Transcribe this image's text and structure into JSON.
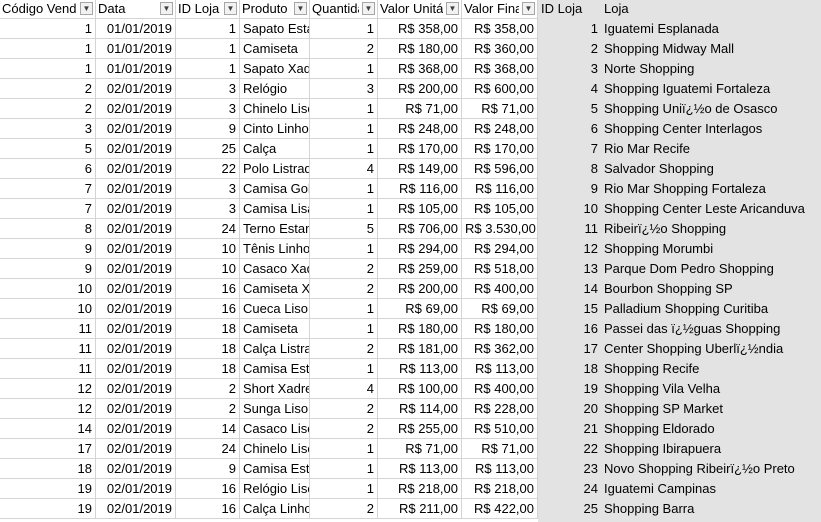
{
  "headers": [
    {
      "label": "Código Vendedor",
      "filter_icon": "dropdown-arrow-icon"
    },
    {
      "label": "Data",
      "filter_icon": "dropdown-arrow-icon"
    },
    {
      "label": "ID Loja",
      "filter_icon": "dropdown-arrow-icon"
    },
    {
      "label": "Produto",
      "filter_icon": "dropdown-arrow-icon"
    },
    {
      "label": "Quantidade",
      "filter_icon": "dropdown-arrow-icon"
    },
    {
      "label": "Valor Unitário",
      "filter_icon": "dropdown-arrow-icon"
    },
    {
      "label": "Valor Final",
      "filter_icon": "dropdown-arrow-icon"
    }
  ],
  "lojas_headers": {
    "id": "ID Loja",
    "name": "Loja"
  },
  "sales_rows": [
    [
      "1",
      "01/01/2019",
      "1",
      "Sapato Estampa",
      "1",
      "R$ 358,00",
      "R$ 358,00"
    ],
    [
      "1",
      "01/01/2019",
      "1",
      "Camiseta",
      "2",
      "R$ 180,00",
      "R$ 360,00"
    ],
    [
      "1",
      "01/01/2019",
      "1",
      "Sapato Xadrez",
      "1",
      "R$ 368,00",
      "R$ 368,00"
    ],
    [
      "2",
      "02/01/2019",
      "3",
      "Relógio",
      "3",
      "R$ 200,00",
      "R$ 600,00"
    ],
    [
      "2",
      "02/01/2019",
      "3",
      "Chinelo Liso",
      "1",
      "R$ 71,00",
      "R$ 71,00"
    ],
    [
      "3",
      "02/01/2019",
      "9",
      "Cinto Linho",
      "1",
      "R$ 248,00",
      "R$ 248,00"
    ],
    [
      "5",
      "02/01/2019",
      "25",
      "Calça",
      "1",
      "R$ 170,00",
      "R$ 170,00"
    ],
    [
      "6",
      "02/01/2019",
      "22",
      "Polo Listrada",
      "4",
      "R$ 149,00",
      "R$ 596,00"
    ],
    [
      "7",
      "02/01/2019",
      "3",
      "Camisa Gola",
      "1",
      "R$ 116,00",
      "R$ 116,00"
    ],
    [
      "7",
      "02/01/2019",
      "3",
      "Camisa Lisa",
      "1",
      "R$ 105,00",
      "R$ 105,00"
    ],
    [
      "8",
      "02/01/2019",
      "24",
      "Terno Estampa",
      "5",
      "R$ 706,00",
      "R$ 3.530,00"
    ],
    [
      "9",
      "02/01/2019",
      "10",
      "Tênis Linho",
      "1",
      "R$ 294,00",
      "R$ 294,00"
    ],
    [
      "9",
      "02/01/2019",
      "10",
      "Casaco Xadrez",
      "2",
      "R$ 259,00",
      "R$ 518,00"
    ],
    [
      "10",
      "02/01/2019",
      "16",
      "Camiseta Xadrez",
      "2",
      "R$ 200,00",
      "R$ 400,00"
    ],
    [
      "10",
      "02/01/2019",
      "16",
      "Cueca Liso",
      "1",
      "R$ 69,00",
      "R$ 69,00"
    ],
    [
      "11",
      "02/01/2019",
      "18",
      "Camiseta",
      "1",
      "R$ 180,00",
      "R$ 180,00"
    ],
    [
      "11",
      "02/01/2019",
      "18",
      "Calça Listrada",
      "2",
      "R$ 181,00",
      "R$ 362,00"
    ],
    [
      "11",
      "02/01/2019",
      "18",
      "Camisa Estampa",
      "1",
      "R$ 113,00",
      "R$ 113,00"
    ],
    [
      "12",
      "02/01/2019",
      "2",
      "Short Xadrez",
      "4",
      "R$ 100,00",
      "R$ 400,00"
    ],
    [
      "12",
      "02/01/2019",
      "2",
      "Sunga Liso",
      "2",
      "R$ 114,00",
      "R$ 228,00"
    ],
    [
      "14",
      "02/01/2019",
      "14",
      "Casaco Liso",
      "2",
      "R$ 255,00",
      "R$ 510,00"
    ],
    [
      "17",
      "02/01/2019",
      "24",
      "Chinelo Liso",
      "1",
      "R$ 71,00",
      "R$ 71,00"
    ],
    [
      "18",
      "02/01/2019",
      "9",
      "Camisa Estampa",
      "1",
      "R$ 113,00",
      "R$ 113,00"
    ],
    [
      "19",
      "02/01/2019",
      "16",
      "Relógio Liso",
      "1",
      "R$ 218,00",
      "R$ 218,00"
    ],
    [
      "19",
      "02/01/2019",
      "16",
      "Calça Linho",
      "2",
      "R$ 211,00",
      "R$ 422,00"
    ]
  ],
  "lojas": [
    [
      "1",
      "Iguatemi Esplanada"
    ],
    [
      "2",
      "Shopping Midway Mall"
    ],
    [
      "3",
      "Norte Shopping"
    ],
    [
      "4",
      "Shopping Iguatemi Fortaleza"
    ],
    [
      "5",
      "Shopping Uniï¿½o de Osasco"
    ],
    [
      "6",
      "Shopping Center Interlagos"
    ],
    [
      "7",
      "Rio Mar Recife"
    ],
    [
      "8",
      "Salvador Shopping"
    ],
    [
      "9",
      "Rio Mar Shopping Fortaleza"
    ],
    [
      "10",
      "Shopping Center Leste Aricanduva"
    ],
    [
      "11",
      "Ribeirï¿½o Shopping"
    ],
    [
      "12",
      "Shopping Morumbi"
    ],
    [
      "13",
      "Parque Dom Pedro Shopping"
    ],
    [
      "14",
      "Bourbon Shopping SP"
    ],
    [
      "15",
      "Palladium Shopping Curitiba"
    ],
    [
      "16",
      "Passei das ï¿½guas Shopping"
    ],
    [
      "17",
      "Center Shopping Uberlï¿½ndia"
    ],
    [
      "18",
      "Shopping Recife"
    ],
    [
      "19",
      "Shopping Vila Velha"
    ],
    [
      "20",
      "Shopping SP Market"
    ],
    [
      "21",
      "Shopping Eldorado"
    ],
    [
      "22",
      "Shopping Ibirapuera"
    ],
    [
      "23",
      "Novo Shopping Ribeirï¿½o Preto"
    ],
    [
      "24",
      "Iguatemi Campinas"
    ],
    [
      "25",
      "Shopping Barra"
    ]
  ],
  "colors": {
    "grid": "#d4d4d4",
    "lookup_shade": "#e3e3e3"
  }
}
